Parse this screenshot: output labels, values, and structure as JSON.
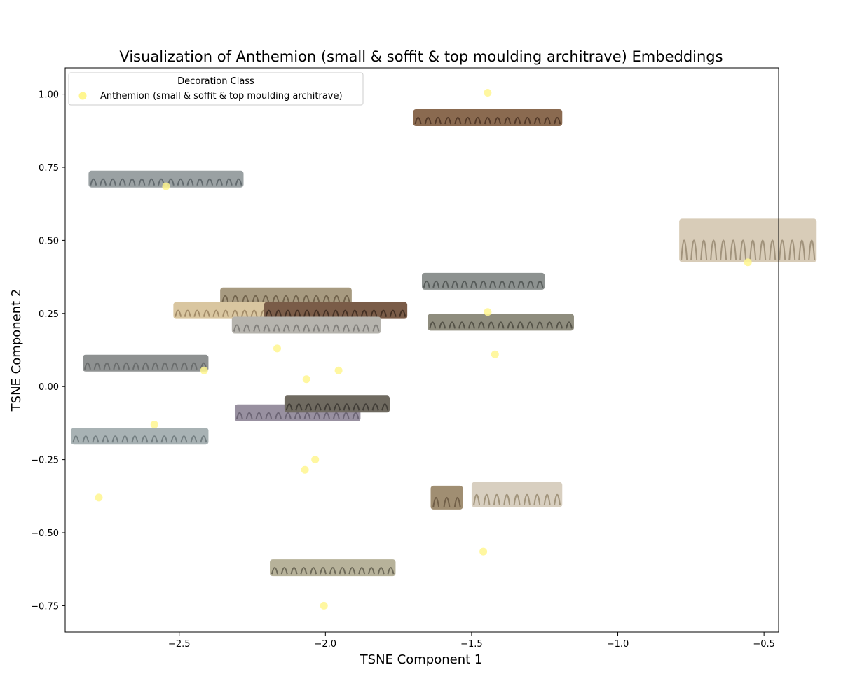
{
  "chart_data": {
    "type": "scatter",
    "title": "Visualization of Anthemion (small & soffit & top moulding architrave) Embeddings",
    "xlabel": "TSNE Component 1",
    "ylabel": "TSNE Component 2",
    "xlim": [
      -2.89,
      -0.45
    ],
    "ylim": [
      -0.84,
      1.09
    ],
    "xticks": [
      -2.5,
      -2.0,
      -1.5,
      -1.0,
      -0.5
    ],
    "xtick_labels": [
      "−2.5",
      "−2.0",
      "−1.5",
      "−1.0",
      "−0.5"
    ],
    "yticks": [
      1.0,
      0.75,
      0.5,
      0.25,
      0.0,
      -0.25,
      -0.5,
      -0.75
    ],
    "ytick_labels": [
      "1.00",
      "0.75",
      "0.50",
      "0.25",
      "0.00",
      "−0.25",
      "−0.50",
      "−0.75"
    ],
    "grid": false,
    "legend": {
      "title": "Decoration Class",
      "placement": "top-left",
      "entries": [
        "Anthemion (small & soffit & top moulding architrave)"
      ]
    },
    "series": [
      {
        "name": "Anthemion (small & soffit & top moulding architrave)",
        "color": "#fff68f",
        "points": [
          {
            "x": -1.445,
            "y": 1.005
          },
          {
            "x": -2.545,
            "y": 0.685
          },
          {
            "x": -0.555,
            "y": 0.425
          },
          {
            "x": -1.445,
            "y": 0.255
          },
          {
            "x": -2.165,
            "y": 0.13
          },
          {
            "x": -1.42,
            "y": 0.11
          },
          {
            "x": -2.415,
            "y": 0.055
          },
          {
            "x": -1.955,
            "y": 0.055
          },
          {
            "x": -2.065,
            "y": 0.025
          },
          {
            "x": -2.585,
            "y": -0.13
          },
          {
            "x": -2.035,
            "y": -0.25
          },
          {
            "x": -2.07,
            "y": -0.285
          },
          {
            "x": -2.775,
            "y": -0.38
          },
          {
            "x": -1.46,
            "y": -0.565
          },
          {
            "x": -2.005,
            "y": -0.75
          }
        ]
      }
    ],
    "image_thumbnails": [
      {
        "x0": -1.7,
        "x1": -1.19,
        "yc": 0.92,
        "tone": "#8a6a50",
        "dark": "#3a2518"
      },
      {
        "x0": -2.81,
        "x1": -2.28,
        "yc": 0.71,
        "tone": "#9aa1a3",
        "dark": "#4a5257"
      },
      {
        "x0": -0.79,
        "x1": -0.32,
        "yc": 0.5,
        "tone": "#d8ccb8",
        "dark": "#8a7a62"
      },
      {
        "x0": -1.67,
        "x1": -1.25,
        "yc": 0.36,
        "tone": "#8d9290",
        "dark": "#3e4442"
      },
      {
        "x0": -2.36,
        "x1": -1.91,
        "yc": 0.31,
        "tone": "#a79a80",
        "dark": "#5a4c36"
      },
      {
        "x0": -2.52,
        "x1": -2.13,
        "yc": 0.26,
        "tone": "#d9c6a0",
        "dark": "#8a7250"
      },
      {
        "x0": -2.21,
        "x1": -1.72,
        "yc": 0.26,
        "tone": "#7a5c48",
        "dark": "#2c1e16"
      },
      {
        "x0": -2.32,
        "x1": -1.81,
        "yc": 0.21,
        "tone": "#b6b4ae",
        "dark": "#6c6a66"
      },
      {
        "x0": -1.65,
        "x1": -1.15,
        "yc": 0.22,
        "tone": "#8f8d7e",
        "dark": "#3c3b32"
      },
      {
        "x0": -2.83,
        "x1": -2.4,
        "yc": 0.08,
        "tone": "#8e9191",
        "dark": "#5a5d5d"
      },
      {
        "x0": -2.31,
        "x1": -1.88,
        "yc": -0.09,
        "tone": "#9890a0",
        "dark": "#5a5362"
      },
      {
        "x0": -2.14,
        "x1": -1.78,
        "yc": -0.06,
        "tone": "#6f6a60",
        "dark": "#2e2b26"
      },
      {
        "x0": -2.87,
        "x1": -2.4,
        "yc": -0.17,
        "tone": "#a8b2b4",
        "dark": "#5d686b"
      },
      {
        "x0": -1.64,
        "x1": -1.53,
        "yc": -0.38,
        "tone": "#a08e72",
        "dark": "#5c4c36"
      },
      {
        "x0": -1.5,
        "x1": -1.19,
        "yc": -0.37,
        "tone": "#d8cfc0",
        "dark": "#8a7a5e"
      },
      {
        "x0": -2.19,
        "x1": -1.76,
        "yc": -0.62,
        "tone": "#b7b29a",
        "dark": "#4d4a3c"
      }
    ]
  }
}
